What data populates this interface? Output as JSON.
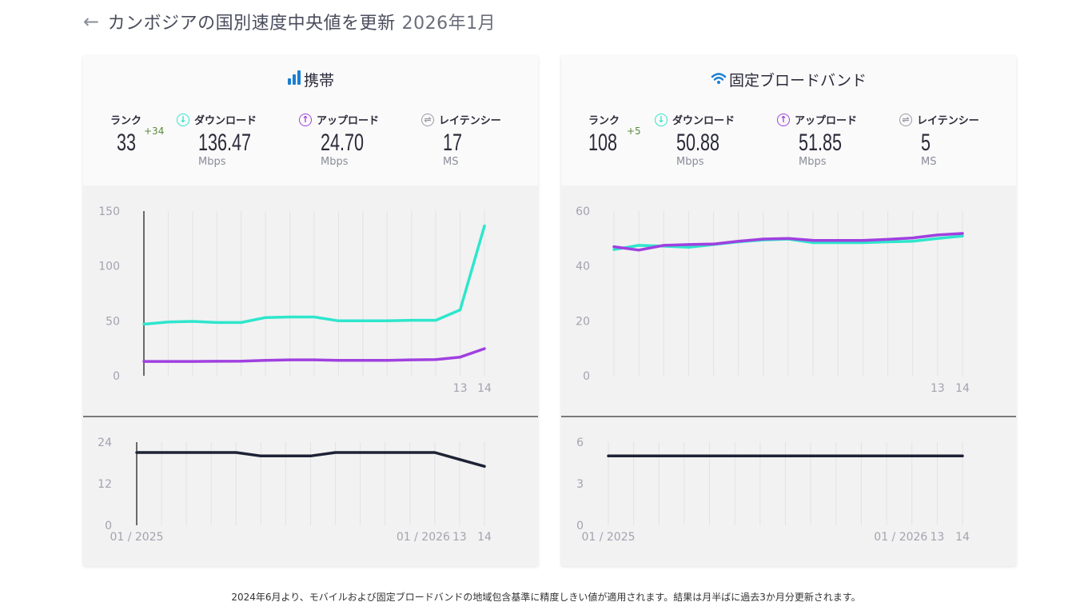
{
  "header": {
    "back_icon": "arrow-left-icon",
    "title": "カンボジアの国別速度中央値を更新",
    "date": "2026年1月"
  },
  "labels": {
    "rank": "ランク",
    "download": "ダウンロード",
    "upload": "アップロード",
    "latency": "レイテンシー",
    "mbps": "Mbps",
    "ms": "MS"
  },
  "colors": {
    "download": "#2ee6cc",
    "upload": "#a040e0",
    "latency": "#1e2235",
    "latency_icon": "#9a9aa8",
    "title_icon": "#1a7fd0"
  },
  "cards": [
    {
      "title": "携帯",
      "icon": "signal-bars-icon",
      "rank": "33",
      "rank_change": "+34",
      "download": "136.47",
      "upload": "24.70",
      "latency": "17"
    },
    {
      "title": "固定ブロードバンド",
      "icon": "wifi-icon",
      "rank": "108",
      "rank_change": "+5",
      "download": "50.88",
      "upload": "51.85",
      "latency": "5"
    }
  ],
  "chart_data": [
    {
      "type": "line",
      "title": "携帯 speed",
      "y_ticks": [
        "0",
        "50",
        "100",
        "150"
      ],
      "ylim": [
        0,
        150
      ],
      "x_tick_labels": {
        "13": "13",
        "14": "14"
      },
      "series": [
        {
          "key": "download",
          "values": [
            47,
            49,
            49.5,
            48.5,
            48.5,
            53,
            53.5,
            53.5,
            50,
            50,
            50,
            50.5,
            50.5,
            60,
            136.47
          ]
        },
        {
          "key": "upload",
          "values": [
            13,
            13,
            13,
            13.2,
            13.3,
            14,
            14.5,
            14.5,
            14,
            14,
            14,
            14.5,
            14.8,
            17,
            24.7
          ]
        }
      ],
      "grid": true,
      "y_axis_line": true
    },
    {
      "type": "line",
      "title": "携帯 latency",
      "y_ticks": [
        "0",
        "12",
        "24"
      ],
      "ylim": [
        0,
        24
      ],
      "x_tick_labels": {
        "0": "01 / 2025",
        "12": "01 / 2026",
        "13": "13",
        "14": "14"
      },
      "series": [
        {
          "key": "latency",
          "values": [
            21,
            21,
            21,
            21,
            21,
            20,
            20,
            20,
            21,
            21,
            21,
            21,
            21,
            19,
            17
          ]
        }
      ],
      "grid": true,
      "y_axis_line": true
    },
    {
      "type": "line",
      "title": "固定ブロードバンド speed",
      "y_ticks": [
        "0",
        "20",
        "40",
        "60"
      ],
      "ylim": [
        0,
        60
      ],
      "x_tick_labels": {
        "13": "13",
        "14": "14"
      },
      "series": [
        {
          "key": "download",
          "values": [
            46,
            47.5,
            47.2,
            46.8,
            47.8,
            48.8,
            49.5,
            49.8,
            48.5,
            48.5,
            48.5,
            48.8,
            49,
            50,
            50.88
          ]
        },
        {
          "key": "upload",
          "values": [
            47,
            45.8,
            47.5,
            47.8,
            48,
            49,
            49.8,
            50,
            49.3,
            49.3,
            49.3,
            49.7,
            50.2,
            51.3,
            51.85
          ]
        }
      ],
      "grid": true,
      "y_axis_line": false
    },
    {
      "type": "line",
      "title": "固定ブロードバンド latency",
      "y_ticks": [
        "0",
        "3",
        "6"
      ],
      "ylim": [
        0,
        6
      ],
      "x_tick_labels": {
        "0": "01 / 2025",
        "12": "01 / 2026",
        "13": "13",
        "14": "14"
      },
      "series": [
        {
          "key": "latency",
          "values": [
            5,
            5,
            5,
            5,
            5,
            5,
            5,
            5,
            5,
            5,
            5,
            5,
            5,
            5,
            5
          ]
        }
      ],
      "grid": true,
      "y_axis_line": false
    }
  ],
  "footer": {
    "note": "2024年6月より、モバイルおよび固定ブロードバンドの地域包含基準に精度しきい値が適用されます。結果は月半ばに過去3か月分更新されます。"
  }
}
